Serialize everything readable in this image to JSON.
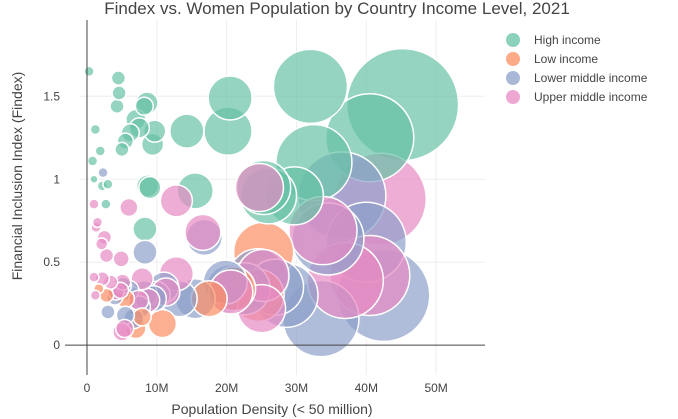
{
  "chart_data": {
    "type": "scatter",
    "title": "Findex vs. Women Population by Country Income Level, 2021",
    "xlabel": "Population Density (< 50 million)",
    "ylabel": "Financial Inclusion Index (Findex)",
    "xlim": [
      -1000000,
      57000000
    ],
    "ylim": [
      -0.18,
      1.96
    ],
    "xticks": [
      0,
      10000000,
      20000000,
      30000000,
      40000000,
      50000000
    ],
    "xtick_labels": [
      "0",
      "10M",
      "20M",
      "30M",
      "40M",
      "50M"
    ],
    "yticks": [
      0,
      0.5,
      1,
      1.5
    ],
    "ytick_labels": [
      "0",
      "0.5",
      "1",
      "1.5"
    ],
    "grid": true,
    "legend_position": "top-right",
    "series": [
      {
        "name": "High income",
        "color": "#66c2a5",
        "points": [
          [
            300000,
            1.65
          ],
          [
            1200000,
            1.3
          ],
          [
            800000,
            1.11
          ],
          [
            1000000,
            1.0
          ],
          [
            1900000,
            1.17
          ],
          [
            2200000,
            0.96
          ],
          [
            3000000,
            0.97
          ],
          [
            2700000,
            0.85
          ],
          [
            4500000,
            1.61
          ],
          [
            4300000,
            1.44
          ],
          [
            4600000,
            1.52
          ],
          [
            5000000,
            1.18
          ],
          [
            5500000,
            1.23
          ],
          [
            6200000,
            1.28
          ],
          [
            7000000,
            1.36
          ],
          [
            7500000,
            1.31
          ],
          [
            8200000,
            1.44
          ],
          [
            8600000,
            1.46
          ],
          [
            9400000,
            1.21
          ],
          [
            9700000,
            1.29
          ],
          [
            8700000,
            0.96
          ],
          [
            9000000,
            0.95
          ],
          [
            8300000,
            0.7
          ],
          [
            14300000,
            1.29
          ],
          [
            15500000,
            0.93
          ],
          [
            20500000,
            1.49
          ],
          [
            20200000,
            1.29
          ],
          [
            25300000,
            0.95
          ],
          [
            26000000,
            0.9
          ],
          [
            29700000,
            0.9
          ],
          [
            32000000,
            1.56
          ],
          [
            32500000,
            1.1
          ],
          [
            40500000,
            1.25
          ],
          [
            45200000,
            1.45
          ]
        ],
        "sizes": [
          5,
          5,
          5,
          4,
          5,
          5,
          5,
          5,
          7,
          7,
          7,
          7,
          8,
          9,
          10,
          10,
          9,
          11,
          11,
          11,
          11,
          11,
          12,
          17,
          18,
          22,
          24,
          27,
          28,
          29,
          37,
          38,
          44,
          56
        ]
      },
      {
        "name": "Low income",
        "color": "#fc8d62",
        "points": [
          [
            1700000,
            0.34
          ],
          [
            2800000,
            0.3
          ],
          [
            5500000,
            0.28
          ],
          [
            7000000,
            0.1
          ],
          [
            7900000,
            0.17
          ],
          [
            10800000,
            0.13
          ],
          [
            17500000,
            0.28
          ],
          [
            21000000,
            0.34
          ],
          [
            24500000,
            0.3
          ],
          [
            25300000,
            0.56
          ]
        ],
        "sizes": [
          5,
          7,
          9,
          10,
          9,
          14,
          18,
          22,
          26,
          30
        ]
      },
      {
        "name": "Lower middle income",
        "color": "#8da0cb",
        "points": [
          [
            2300000,
            1.04
          ],
          [
            3000000,
            0.2
          ],
          [
            4000000,
            0.29
          ],
          [
            5200000,
            0.36
          ],
          [
            6000000,
            0.33
          ],
          [
            5500000,
            0.18
          ],
          [
            6700000,
            0.16
          ],
          [
            7500000,
            0.23
          ],
          [
            8200000,
            0.31
          ],
          [
            8300000,
            0.56
          ],
          [
            9500000,
            0.28
          ],
          [
            9900000,
            0.3
          ],
          [
            11000000,
            0.35
          ],
          [
            13200000,
            0.28
          ],
          [
            15500000,
            0.28
          ],
          [
            16800000,
            0.65
          ],
          [
            19800000,
            0.38
          ],
          [
            20500000,
            0.34
          ],
          [
            22500000,
            0.34
          ],
          [
            24500000,
            0.4
          ],
          [
            27000000,
            0.35
          ],
          [
            28500000,
            0.3
          ],
          [
            33500000,
            0.16
          ],
          [
            34500000,
            0.64
          ],
          [
            36500000,
            0.9
          ],
          [
            40000000,
            0.62
          ],
          [
            42500000,
            0.3
          ]
        ],
        "sizes": [
          5,
          7,
          8,
          8,
          10,
          9,
          10,
          11,
          13,
          12,
          13,
          14,
          15,
          18,
          20,
          18,
          22,
          24,
          26,
          30,
          28,
          32,
          38,
          36,
          44,
          40,
          46
        ]
      },
      {
        "name": "Upper middle income",
        "color": "#e78ac3",
        "points": [
          [
            1000000,
            0.85
          ],
          [
            1300000,
            0.71
          ],
          [
            1500000,
            0.74
          ],
          [
            1200000,
            0.3
          ],
          [
            1000000,
            0.41
          ],
          [
            2100000,
            0.61
          ],
          [
            2500000,
            0.65
          ],
          [
            2800000,
            0.54
          ],
          [
            3400000,
            0.38
          ],
          [
            2200000,
            0.4
          ],
          [
            4200000,
            0.32
          ],
          [
            4900000,
            0.52
          ],
          [
            5100000,
            0.38
          ],
          [
            4800000,
            0.33
          ],
          [
            5000000,
            0.08
          ],
          [
            5400000,
            0.1
          ],
          [
            6000000,
            0.83
          ],
          [
            7400000,
            0.27
          ],
          [
            7900000,
            0.4
          ],
          [
            8700000,
            0.27
          ],
          [
            11300000,
            0.32
          ],
          [
            12800000,
            0.87
          ],
          [
            12800000,
            0.43
          ],
          [
            16600000,
            0.68
          ],
          [
            20600000,
            0.32
          ],
          [
            24700000,
            0.95
          ],
          [
            25200000,
            0.42
          ],
          [
            25000000,
            0.22
          ],
          [
            33800000,
            0.69
          ],
          [
            37000000,
            0.39
          ],
          [
            40500000,
            0.42
          ],
          [
            42000000,
            0.88
          ]
        ],
        "sizes": [
          5,
          5,
          5,
          5,
          5,
          6,
          7,
          7,
          7,
          7,
          8,
          8,
          8,
          8,
          9,
          9,
          9,
          10,
          11,
          12,
          14,
          16,
          17,
          18,
          22,
          24,
          26,
          24,
          34,
          38,
          40,
          46
        ]
      }
    ]
  }
}
